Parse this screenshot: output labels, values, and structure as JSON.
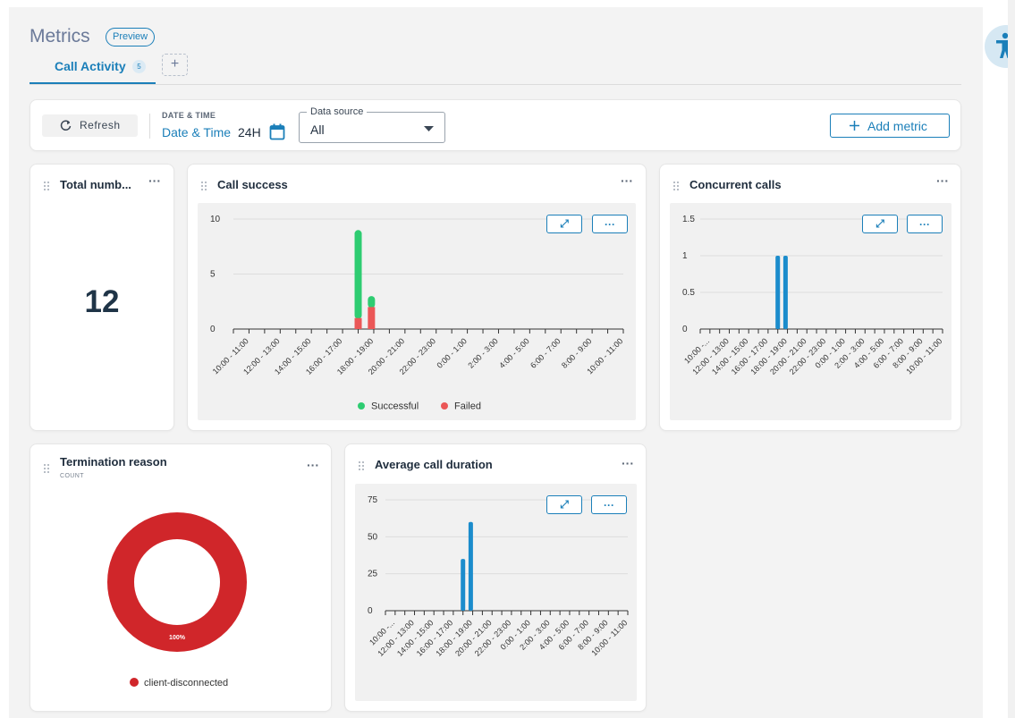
{
  "header": {
    "title": "Metrics",
    "preview_badge": "Preview",
    "tabs": [
      {
        "label": "Call Activity",
        "count": "5"
      }
    ],
    "add_tab": "+"
  },
  "toolbar": {
    "refresh_label": "Refresh",
    "date_caption": "DATE & TIME",
    "date_value": "Date & Time",
    "date_range": "24H",
    "data_source_label": "Data source",
    "data_source_value": "All",
    "add_metric_label": "Add metric"
  },
  "colors": {
    "accent": "#1b7fb9",
    "successful": "#2ecc71",
    "failed": "#eb5757",
    "bar": "#1b8ccc",
    "donut": "#d0262a"
  },
  "widgets": {
    "total": {
      "title": "Total numb...",
      "value": "12"
    },
    "call_success": {
      "title": "Call success"
    },
    "concurrent": {
      "title": "Concurrent calls"
    },
    "termination": {
      "title": "Termination reason",
      "subtitle": "COUNT"
    },
    "avg_duration": {
      "title": "Average call duration"
    }
  },
  "chart_data": [
    {
      "type": "bar",
      "title": "Call success",
      "categories": [
        "10:00 - 11:00",
        "12:00 - 13:00",
        "14:00 - 15:00",
        "16:00 - 17:00",
        "18:00 - 19:00",
        "20:00 - 21:00",
        "22:00 - 23:00",
        "0:00 - 1:00",
        "2:00 - 3:00",
        "4:00 - 5:00",
        "6:00 - 7:00",
        "8:00 - 9:00",
        "10:00 - 11:00"
      ],
      "yticks": [
        "0",
        "5",
        "10"
      ],
      "ylim": [
        0,
        10
      ],
      "stacked": true,
      "bars": [
        {
          "x": 8.0,
          "Successful": 8,
          "Failed": 1
        },
        {
          "x": 8.85,
          "Successful": 1,
          "Failed": 2
        }
      ],
      "legend": [
        "Successful",
        "Failed"
      ]
    },
    {
      "type": "bar",
      "title": "Concurrent calls",
      "categories": [
        "10:00 -...",
        "12:00 - 13:00",
        "14:00 - 15:00",
        "16:00 - 17:00",
        "18:00 - 19:00",
        "20:00 - 21:00",
        "22:00 - 23:00",
        "0:00 - 1:00",
        "2:00 - 3:00",
        "4:00 - 5:00",
        "6:00 - 7:00",
        "8:00 - 9:00",
        "10:00 - 11:00"
      ],
      "yticks": [
        "0",
        "0.5",
        "1",
        "1.5"
      ],
      "ylim": [
        0,
        1.5
      ],
      "bars": [
        {
          "x": 8.0,
          "value": 1
        },
        {
          "x": 8.8,
          "value": 1
        }
      ]
    },
    {
      "type": "pie",
      "title": "Termination reason",
      "slices": [
        {
          "label": "client-disconnected",
          "value": 100,
          "display": "100%"
        }
      ]
    },
    {
      "type": "bar",
      "title": "Average call duration",
      "categories": [
        "10:00 -...",
        "12:00 - 13:00",
        "14:00 - 15:00",
        "16:00 - 17:00",
        "18:00 - 19:00",
        "20:00 - 21:00",
        "22:00 - 23:00",
        "0:00 - 1:00",
        "2:00 - 3:00",
        "4:00 - 5:00",
        "6:00 - 7:00",
        "8:00 - 9:00",
        "10:00 - 11:00"
      ],
      "yticks": [
        "0",
        "25",
        "50",
        "75"
      ],
      "ylim": [
        0,
        75
      ],
      "bars": [
        {
          "x": 8.0,
          "value": 35
        },
        {
          "x": 8.8,
          "value": 60
        }
      ]
    }
  ]
}
